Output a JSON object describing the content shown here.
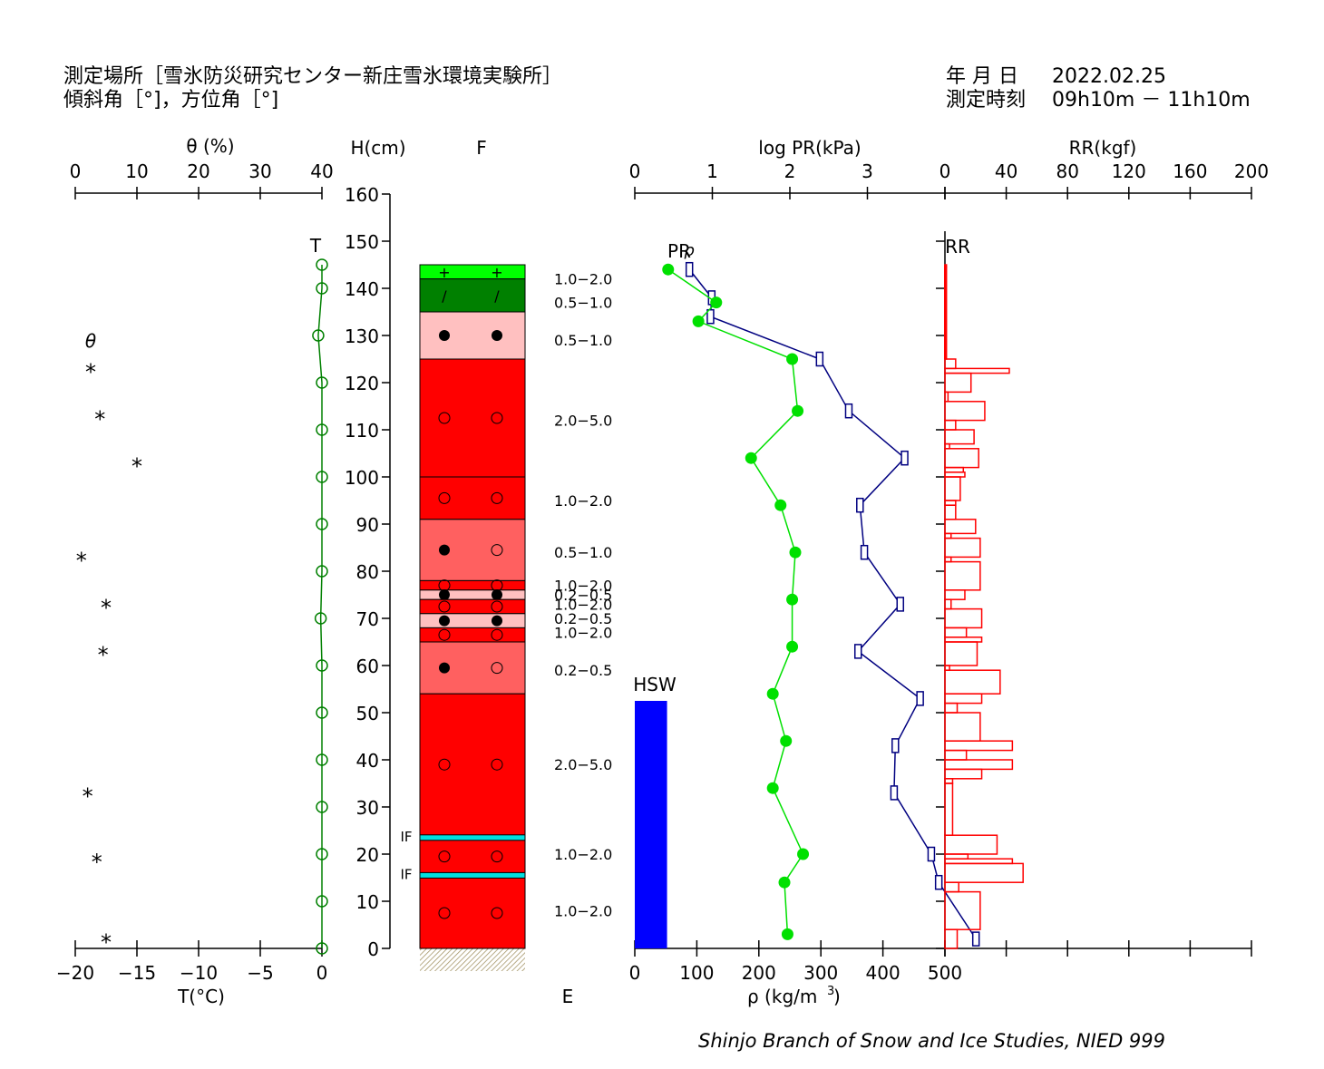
{
  "header": {
    "site_line": "測定場所［雪氷防災研究センター新庄雪氷環境実験所］",
    "angle_line": "傾斜角［°]，方位角［°]",
    "date_label": "年 月 日",
    "date_value": "2022.02.25",
    "time_label": "測定時刻",
    "time_value": "09h10m － 11h10m"
  },
  "footer": "Shinjo Branch of Snow and Ice Studies, NIED 999",
  "colors": {
    "temperature": "#008000",
    "pr": "#00e000",
    "density": "#000080",
    "rr": "#ff0000",
    "hsw": "#0000ff",
    "ice_crust": "#00e0e0"
  },
  "chart_data": [
    {
      "type": "scatter",
      "name": "temperature-and-water-content",
      "x_top_label": "θ (%)",
      "x_top_ticks": [
        "0",
        "10",
        "20",
        "30",
        "40"
      ],
      "x_top_lim": [
        0,
        40
      ],
      "x_bottom_label": "T(°C)",
      "x_bottom_ticks": [
        "−20",
        "−15",
        "−10",
        "−5",
        "0"
      ],
      "x_bottom_lim": [
        -20,
        0
      ],
      "series_labels": {
        "temperature": "T",
        "theta": "θ"
      },
      "temperature": {
        "h": [
          145,
          140,
          130,
          120,
          110,
          100,
          90,
          80,
          70,
          60,
          50,
          40,
          30,
          20,
          10,
          0
        ],
        "t": [
          0,
          0,
          -0.3,
          0,
          0,
          0,
          0,
          0,
          -0.1,
          0,
          0,
          0,
          0,
          0,
          0,
          0
        ]
      },
      "theta_marker": "*",
      "theta": {
        "h": [
          123,
          113,
          103,
          83,
          73,
          63,
          33,
          19,
          2
        ],
        "v": [
          2.5,
          4,
          10,
          1,
          5,
          4.5,
          2,
          3.5,
          5
        ]
      }
    },
    {
      "type": "table",
      "name": "snow-stratigraphy",
      "h_axis_label": "H(cm)",
      "h_ticks": [
        "0",
        "10",
        "20",
        "30",
        "40",
        "50",
        "60",
        "70",
        "80",
        "90",
        "100",
        "110",
        "120",
        "130",
        "140",
        "150",
        "160"
      ],
      "h_lim": [
        0,
        160
      ],
      "f_label": "F",
      "e_label": "E",
      "layers": [
        {
          "bottom": 142,
          "top": 145,
          "color": "#00ff00",
          "sym": [
            "+",
            "+"
          ],
          "e": "1.0−2.0"
        },
        {
          "bottom": 135,
          "top": 142,
          "color": "#008000",
          "sym": [
            "/",
            "/"
          ],
          "e": "0.5−1.0"
        },
        {
          "bottom": 125,
          "top": 135,
          "color": "#ffc0c0",
          "sym": [
            "●",
            "●"
          ],
          "e": "0.5−1.0"
        },
        {
          "bottom": 100,
          "top": 125,
          "color": "#ff0000",
          "sym": [
            "○",
            "○"
          ],
          "e": "2.0−5.0"
        },
        {
          "bottom": 91,
          "top": 100,
          "color": "#ff0000",
          "sym": [
            "○",
            "○"
          ],
          "e": "1.0−2.0"
        },
        {
          "bottom": 78,
          "top": 91,
          "color": "#ff6060",
          "sym": [
            "●",
            "○"
          ],
          "e": "0.5−1.0"
        },
        {
          "bottom": 76,
          "top": 78,
          "color": "#ff0000",
          "sym": [
            "○",
            "○"
          ],
          "e": "1.0−2.0"
        },
        {
          "bottom": 74,
          "top": 76,
          "color": "#ffc0c0",
          "sym": [
            "●",
            "●"
          ],
          "e": "0.2−0.5"
        },
        {
          "bottom": 71,
          "top": 74,
          "color": "#ff0000",
          "sym": [
            "○",
            "○"
          ],
          "e": "1.0−2.0"
        },
        {
          "bottom": 68,
          "top": 71,
          "color": "#ffc0c0",
          "sym": [
            "●",
            "●"
          ],
          "e": "0.2−0.5"
        },
        {
          "bottom": 65,
          "top": 68,
          "color": "#ff0000",
          "sym": [
            "○",
            "○"
          ],
          "e": "1.0−2.0"
        },
        {
          "bottom": 54,
          "top": 65,
          "color": "#ff6060",
          "sym": [
            "●",
            "○"
          ],
          "e": "0.2−0.5"
        },
        {
          "bottom": 24,
          "top": 54,
          "color": "#ff0000",
          "sym": [
            "○",
            "○"
          ],
          "e": "2.0−5.0"
        },
        {
          "bottom": 16,
          "top": 23,
          "color": "#ff0000",
          "sym": [
            "○",
            "○"
          ],
          "e": "1.0−2.0"
        },
        {
          "bottom": 0,
          "top": 15,
          "color": "#ff0000",
          "sym": [
            "○",
            "○"
          ],
          "e": "1.0−2.0"
        }
      ],
      "e_label_heights": [
        142,
        137,
        129,
        112,
        95,
        84,
        77,
        75,
        73,
        70,
        67,
        59,
        39,
        20,
        8
      ],
      "ice_crusts": [
        {
          "h": 23.5,
          "label": "IF"
        },
        {
          "h": 15.5,
          "label": "IF"
        }
      ]
    },
    {
      "type": "line",
      "name": "pr-density",
      "x_top_label": "log PR(kPa)",
      "x_top_ticks": [
        "0",
        "1",
        "2",
        "3"
      ],
      "x_top_lim": [
        0,
        4
      ],
      "x_bottom_label": "ρ (kg/m",
      "x_bottom_label_sup": "3",
      "x_bottom_label_tail": ")",
      "x_bottom_ticks": [
        "0",
        "100",
        "200",
        "300",
        "400",
        "500"
      ],
      "x_bottom_lim": [
        0,
        500
      ],
      "labels": {
        "pr": "PR",
        "density": "ρ",
        "hsw": "HSW"
      },
      "pr": {
        "h": [
          144,
          137,
          133,
          125,
          114,
          104,
          94,
          84,
          74,
          64,
          54,
          44,
          34,
          20,
          14,
          3
        ],
        "log_pr": [
          0.43,
          1.05,
          0.82,
          2.03,
          2.1,
          1.5,
          1.88,
          2.07,
          2.03,
          2.03,
          1.78,
          1.95,
          1.78,
          2.17,
          1.93,
          1.97
        ]
      },
      "density": {
        "h": [
          144,
          138,
          134,
          125,
          114,
          104,
          94,
          84,
          73,
          63,
          53,
          43,
          33,
          20,
          14,
          2
        ],
        "rho": [
          88,
          124,
          122,
          298,
          345,
          435,
          363,
          370,
          428,
          360,
          460,
          420,
          418,
          478,
          490,
          550
        ]
      },
      "hsw": {
        "value_mm": 52,
        "top_h": 52.5
      }
    },
    {
      "type": "bar",
      "name": "ram-resistance",
      "x_label": "RR(kgf)",
      "x_ticks": [
        "0",
        "40",
        "80",
        "120",
        "160",
        "200"
      ],
      "x_lim": [
        0,
        200
      ],
      "series_label": "RR",
      "bars": [
        {
          "h0": 144.5,
          "h1": 145,
          "v": 1
        },
        {
          "h0": 125,
          "h1": 144.5,
          "v": 1
        },
        {
          "h0": 123,
          "h1": 125,
          "v": 7
        },
        {
          "h0": 122,
          "h1": 123,
          "v": 42
        },
        {
          "h0": 118,
          "h1": 122,
          "v": 17
        },
        {
          "h0": 116,
          "h1": 118,
          "v": 2
        },
        {
          "h0": 112,
          "h1": 116,
          "v": 26
        },
        {
          "h0": 110,
          "h1": 112,
          "v": 7
        },
        {
          "h0": 107,
          "h1": 110,
          "v": 19
        },
        {
          "h0": 106,
          "h1": 107,
          "v": 3
        },
        {
          "h0": 102,
          "h1": 106,
          "v": 22
        },
        {
          "h0": 101,
          "h1": 102,
          "v": 12
        },
        {
          "h0": 100,
          "h1": 101,
          "v": 13
        },
        {
          "h0": 95,
          "h1": 100,
          "v": 10
        },
        {
          "h0": 94,
          "h1": 95,
          "v": 7
        },
        {
          "h0": 91,
          "h1": 94,
          "v": 7
        },
        {
          "h0": 88,
          "h1": 91,
          "v": 20
        },
        {
          "h0": 87,
          "h1": 88,
          "v": 4
        },
        {
          "h0": 83,
          "h1": 87,
          "v": 23
        },
        {
          "h0": 82,
          "h1": 83,
          "v": 4
        },
        {
          "h0": 76,
          "h1": 82,
          "v": 23
        },
        {
          "h0": 74,
          "h1": 76,
          "v": 13
        },
        {
          "h0": 72,
          "h1": 74,
          "v": 4
        },
        {
          "h0": 68,
          "h1": 72,
          "v": 24
        },
        {
          "h0": 66,
          "h1": 68,
          "v": 14
        },
        {
          "h0": 65,
          "h1": 66,
          "v": 24
        },
        {
          "h0": 60,
          "h1": 65,
          "v": 21
        },
        {
          "h0": 59,
          "h1": 60,
          "v": 3
        },
        {
          "h0": 54,
          "h1": 59,
          "v": 36
        },
        {
          "h0": 52,
          "h1": 54,
          "v": 24
        },
        {
          "h0": 50,
          "h1": 52,
          "v": 8
        },
        {
          "h0": 44,
          "h1": 50,
          "v": 23
        },
        {
          "h0": 42,
          "h1": 44,
          "v": 44
        },
        {
          "h0": 40,
          "h1": 42,
          "v": 14
        },
        {
          "h0": 38,
          "h1": 40,
          "v": 44
        },
        {
          "h0": 36,
          "h1": 38,
          "v": 24
        },
        {
          "h0": 35,
          "h1": 36,
          "v": 5
        },
        {
          "h0": 24,
          "h1": 35,
          "v": 5
        },
        {
          "h0": 20,
          "h1": 24,
          "v": 34
        },
        {
          "h0": 19,
          "h1": 20,
          "v": 15
        },
        {
          "h0": 18,
          "h1": 19,
          "v": 44
        },
        {
          "h0": 14,
          "h1": 18,
          "v": 51
        },
        {
          "h0": 12,
          "h1": 14,
          "v": 9
        },
        {
          "h0": 4,
          "h1": 12,
          "v": 23
        },
        {
          "h0": 0,
          "h1": 4,
          "v": 8
        }
      ]
    }
  ]
}
